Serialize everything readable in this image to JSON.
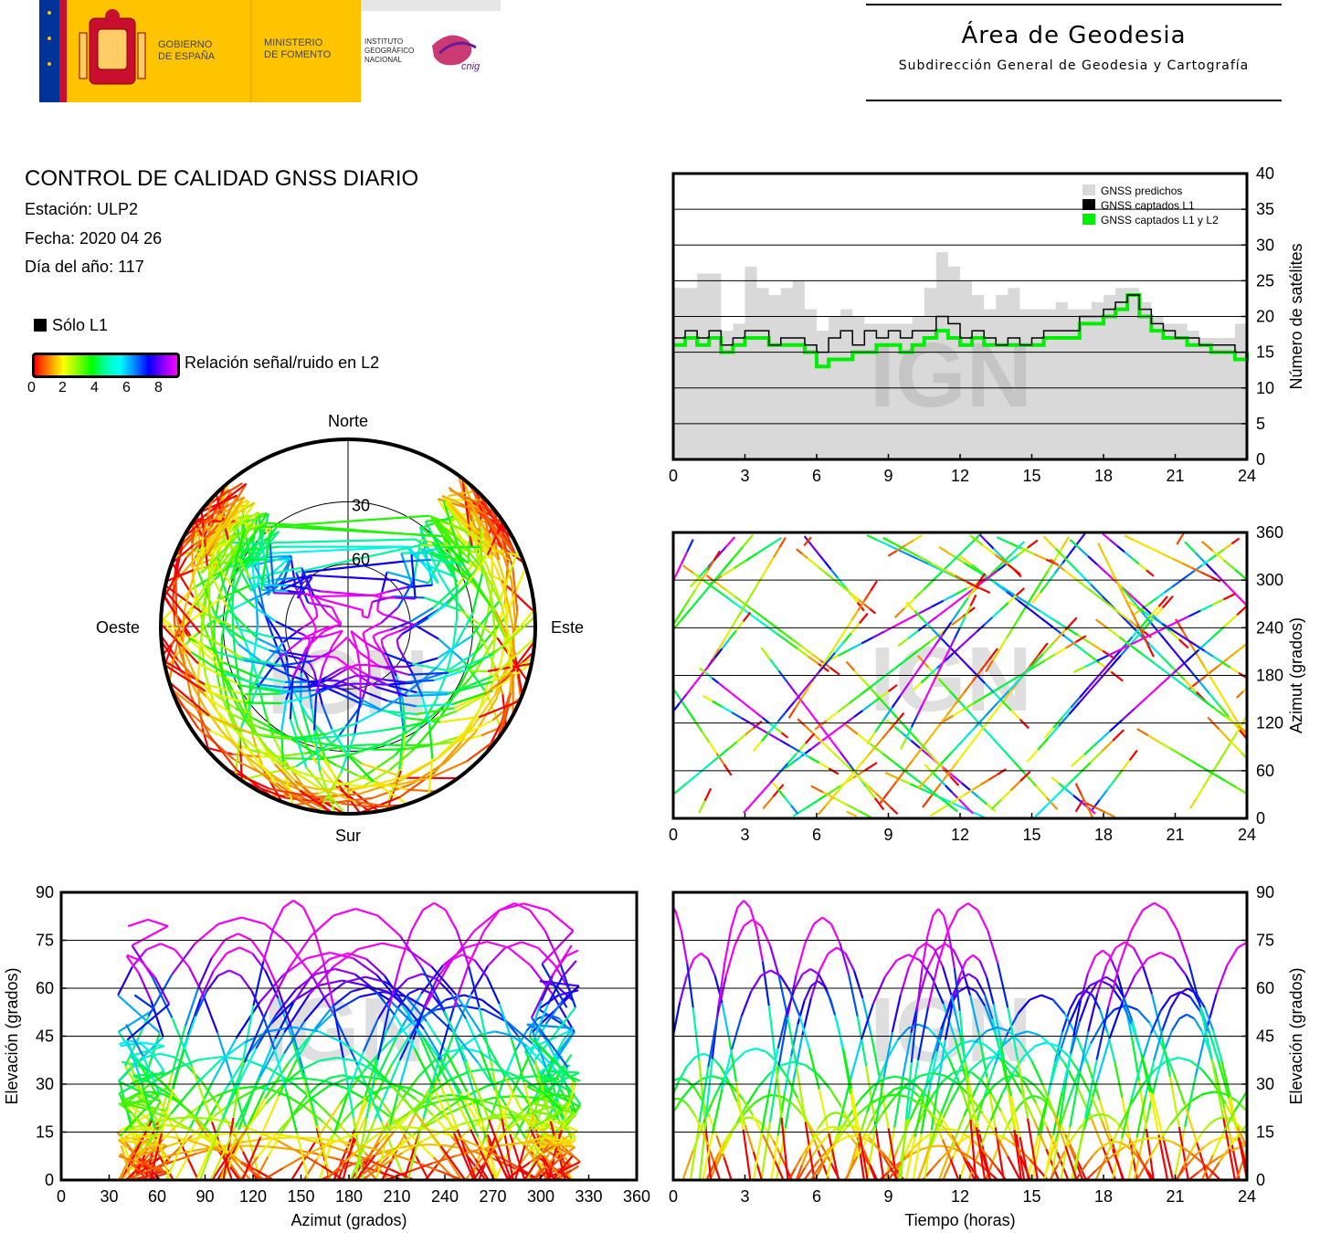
{
  "header": {
    "gobierno": "GOBIERNO\nDE ESPAÑA",
    "ministerio": "MINISTERIO\nDE FOMENTO",
    "instituto": "INSTITUTO\nGEOGRÁFICO\nNACIONAL",
    "cnig": "cnig",
    "area_title": "Área de Geodesia",
    "area_subtitle": "Subdirección General de Geodesia y Cartografía",
    "colors": {
      "spain_red": "#c8102e",
      "spain_yellow": "#ffc400",
      "eu_blue": "#003399",
      "cnig_magenta": "#c2185b"
    }
  },
  "info": {
    "title": "CONTROL DE CALIDAD GNSS DIARIO",
    "station": "Estación: ULP2",
    "date": "Fecha: 2020 04 26",
    "doy": "Día del año: 117",
    "solo_l1": "Sólo L1",
    "snr_label": "Relación señal/ruido en L2",
    "snr_ticks": [
      "0",
      "2",
      "4",
      "6",
      "8"
    ]
  },
  "watermark": "IGN",
  "chart_data": [
    {
      "type": "area",
      "id": "satellites",
      "ylabel": "Número de satélites",
      "xlim": [
        0,
        24
      ],
      "ylim": [
        0,
        40
      ],
      "xticks": [
        0,
        3,
        6,
        9,
        12,
        15,
        18,
        21,
        24
      ],
      "yticks": [
        0,
        5,
        10,
        15,
        20,
        25,
        30,
        35,
        40
      ],
      "grid": true,
      "legend": "top-right",
      "series": [
        {
          "name": "GNSS predichos",
          "color": "#d9d9d9",
          "x": [
            0,
            0.5,
            1,
            1.5,
            2,
            2.5,
            3,
            3.5,
            4,
            4.5,
            5,
            5.5,
            6,
            6.5,
            7,
            7.5,
            8,
            8.5,
            9,
            9.5,
            10,
            10.5,
            11,
            11.5,
            12,
            12.5,
            13,
            13.5,
            14,
            14.5,
            15,
            15.5,
            16,
            16.5,
            17,
            17.5,
            18,
            18.5,
            19,
            19.5,
            20,
            20.5,
            21,
            21.5,
            22,
            22.5,
            23,
            23.5,
            24
          ],
          "values": [
            24,
            24,
            26,
            26,
            18,
            19,
            27,
            24,
            23,
            24,
            25,
            21,
            18,
            20,
            21,
            20,
            19,
            19,
            19,
            19,
            20,
            24,
            29,
            27,
            25,
            23,
            21,
            23,
            24,
            21,
            21,
            21,
            22,
            21,
            21,
            22,
            23,
            24,
            24,
            22,
            20,
            19,
            19,
            18,
            17,
            17,
            17,
            19,
            20
          ]
        },
        {
          "name": "GNSS captados L1",
          "color": "#000000",
          "x": [
            0,
            0.5,
            1,
            1.5,
            2,
            2.5,
            3,
            3.5,
            4,
            4.5,
            5,
            5.5,
            6,
            6.5,
            7,
            7.5,
            8,
            8.5,
            9,
            9.5,
            10,
            10.5,
            11,
            11.5,
            12,
            12.5,
            13,
            13.5,
            14,
            14.5,
            15,
            15.5,
            16,
            16.5,
            17,
            17.5,
            18,
            18.5,
            19,
            19.5,
            20,
            20.5,
            21,
            21.5,
            22,
            22.5,
            23,
            23.5,
            24
          ],
          "values": [
            17,
            18,
            17,
            18,
            16,
            17,
            18,
            18,
            16,
            17,
            17,
            16,
            15,
            17,
            18,
            16,
            18,
            17,
            18,
            17,
            18,
            18,
            20,
            19,
            17,
            18,
            17,
            16,
            17,
            16,
            17,
            18,
            18,
            18,
            20,
            20,
            21,
            22,
            23,
            21,
            19,
            18,
            17,
            17,
            16,
            16,
            16,
            15,
            15
          ]
        },
        {
          "name": "GNSS captados L1 y L2",
          "color": "#00ee00",
          "x": [
            0,
            0.5,
            1,
            1.5,
            2,
            2.5,
            3,
            3.5,
            4,
            4.5,
            5,
            5.5,
            6,
            6.5,
            7,
            7.5,
            8,
            8.5,
            9,
            9.5,
            10,
            10.5,
            11,
            11.5,
            12,
            12.5,
            13,
            13.5,
            14,
            14.5,
            15,
            15.5,
            16,
            16.5,
            17,
            17.5,
            18,
            18.5,
            19,
            19.5,
            20,
            20.5,
            21,
            21.5,
            22,
            22.5,
            23,
            23.5,
            24
          ],
          "values": [
            16,
            17,
            16,
            17,
            15,
            16,
            17,
            17,
            16,
            16,
            16,
            15,
            13,
            14,
            14,
            15,
            15,
            16,
            16,
            15,
            16,
            17,
            18,
            17,
            16,
            17,
            16,
            16,
            16,
            16,
            16,
            17,
            17,
            17,
            19,
            19,
            20,
            21,
            23,
            20,
            18,
            17,
            17,
            16,
            16,
            15,
            15,
            14,
            15
          ]
        }
      ]
    },
    {
      "type": "scatter",
      "id": "azimuth_time",
      "ylabel": "Azimut (grados)",
      "xlim": [
        0,
        24
      ],
      "ylim": [
        0,
        360
      ],
      "xticks": [
        0,
        3,
        6,
        9,
        12,
        15,
        18,
        21,
        24
      ],
      "yticks": [
        0,
        60,
        120,
        180,
        240,
        300,
        360
      ],
      "grid": true
    },
    {
      "type": "scatter",
      "id": "skyplot",
      "labels": {
        "north": "Norte",
        "south": "Sur",
        "west": "Oeste",
        "east": "Este"
      },
      "rings": [
        "30",
        "60"
      ]
    },
    {
      "type": "scatter",
      "id": "elev_azimuth",
      "xlabel": "Azimut (grados)",
      "ylabel": "Elevación (grados)",
      "xlim": [
        0,
        360
      ],
      "ylim": [
        0,
        90
      ],
      "xticks": [
        0,
        30,
        60,
        90,
        120,
        150,
        180,
        210,
        240,
        270,
        300,
        330,
        360
      ],
      "yticks": [
        0,
        15,
        30,
        45,
        60,
        75,
        90
      ],
      "grid": true
    },
    {
      "type": "scatter",
      "id": "elev_time",
      "xlabel": "Tiempo (horas)",
      "ylabel": "Elevación (grados)",
      "xlim": [
        0,
        24
      ],
      "ylim": [
        0,
        90
      ],
      "xticks": [
        0,
        3,
        6,
        9,
        12,
        15,
        18,
        21,
        24
      ],
      "yticks": [
        0,
        15,
        30,
        45,
        60,
        75,
        90
      ],
      "grid": true
    }
  ]
}
